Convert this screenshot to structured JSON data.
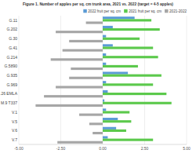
{
  "chart_data": {
    "type": "bar",
    "orientation": "horizontal",
    "title": "Figure 1. Number of apples per sq. cm trunk area, 2021 vs. 2022 (target = 4-5 apples)",
    "categories": [
      "G.11",
      "G.202",
      "G.30",
      "G.41",
      "G.214",
      "G.5890",
      "G.935",
      "G.969",
      ".26 EMLA",
      "M.9 T337",
      "V.1",
      "V.5",
      "V.6",
      "V.7"
    ],
    "series": [
      {
        "name": "2022 fruit per sq. cm",
        "color": "#5b9bd5",
        "values": [
          1.9,
          0.6,
          0.2,
          0.6,
          0.2,
          0.2,
          1.5,
          0.2,
          0.3,
          0.1,
          0.2,
          0.9,
          0.8,
          0.3
        ]
      },
      {
        "name": "2021 fruit per sq. cm",
        "color": "#5cc94c",
        "values": [
          2.9,
          3.4,
          2.2,
          3.0,
          3.3,
          2.1,
          3.5,
          3.0,
          3.8,
          4.1,
          1.6,
          1.7,
          1.4,
          3.0
        ]
      },
      {
        "name": "2021-2022",
        "color": "#a6a6a6",
        "values": [
          -1.0,
          -2.8,
          -2.0,
          -2.4,
          -3.1,
          -1.9,
          -2.0,
          -2.8,
          -3.5,
          -4.0,
          -1.4,
          -0.8,
          -0.6,
          -2.7
        ]
      }
    ],
    "xlim": [
      -5,
      5
    ],
    "xticks": [
      {
        "value": -5,
        "label": "-5.00"
      },
      {
        "value": -2.5,
        "label": "-2.50"
      },
      {
        "value": 0,
        "label": "0.00"
      },
      {
        "value": 2.5,
        "label": "2.50"
      },
      {
        "value": 5,
        "label": "5.00"
      }
    ],
    "grid": true,
    "legend": "top-right"
  }
}
